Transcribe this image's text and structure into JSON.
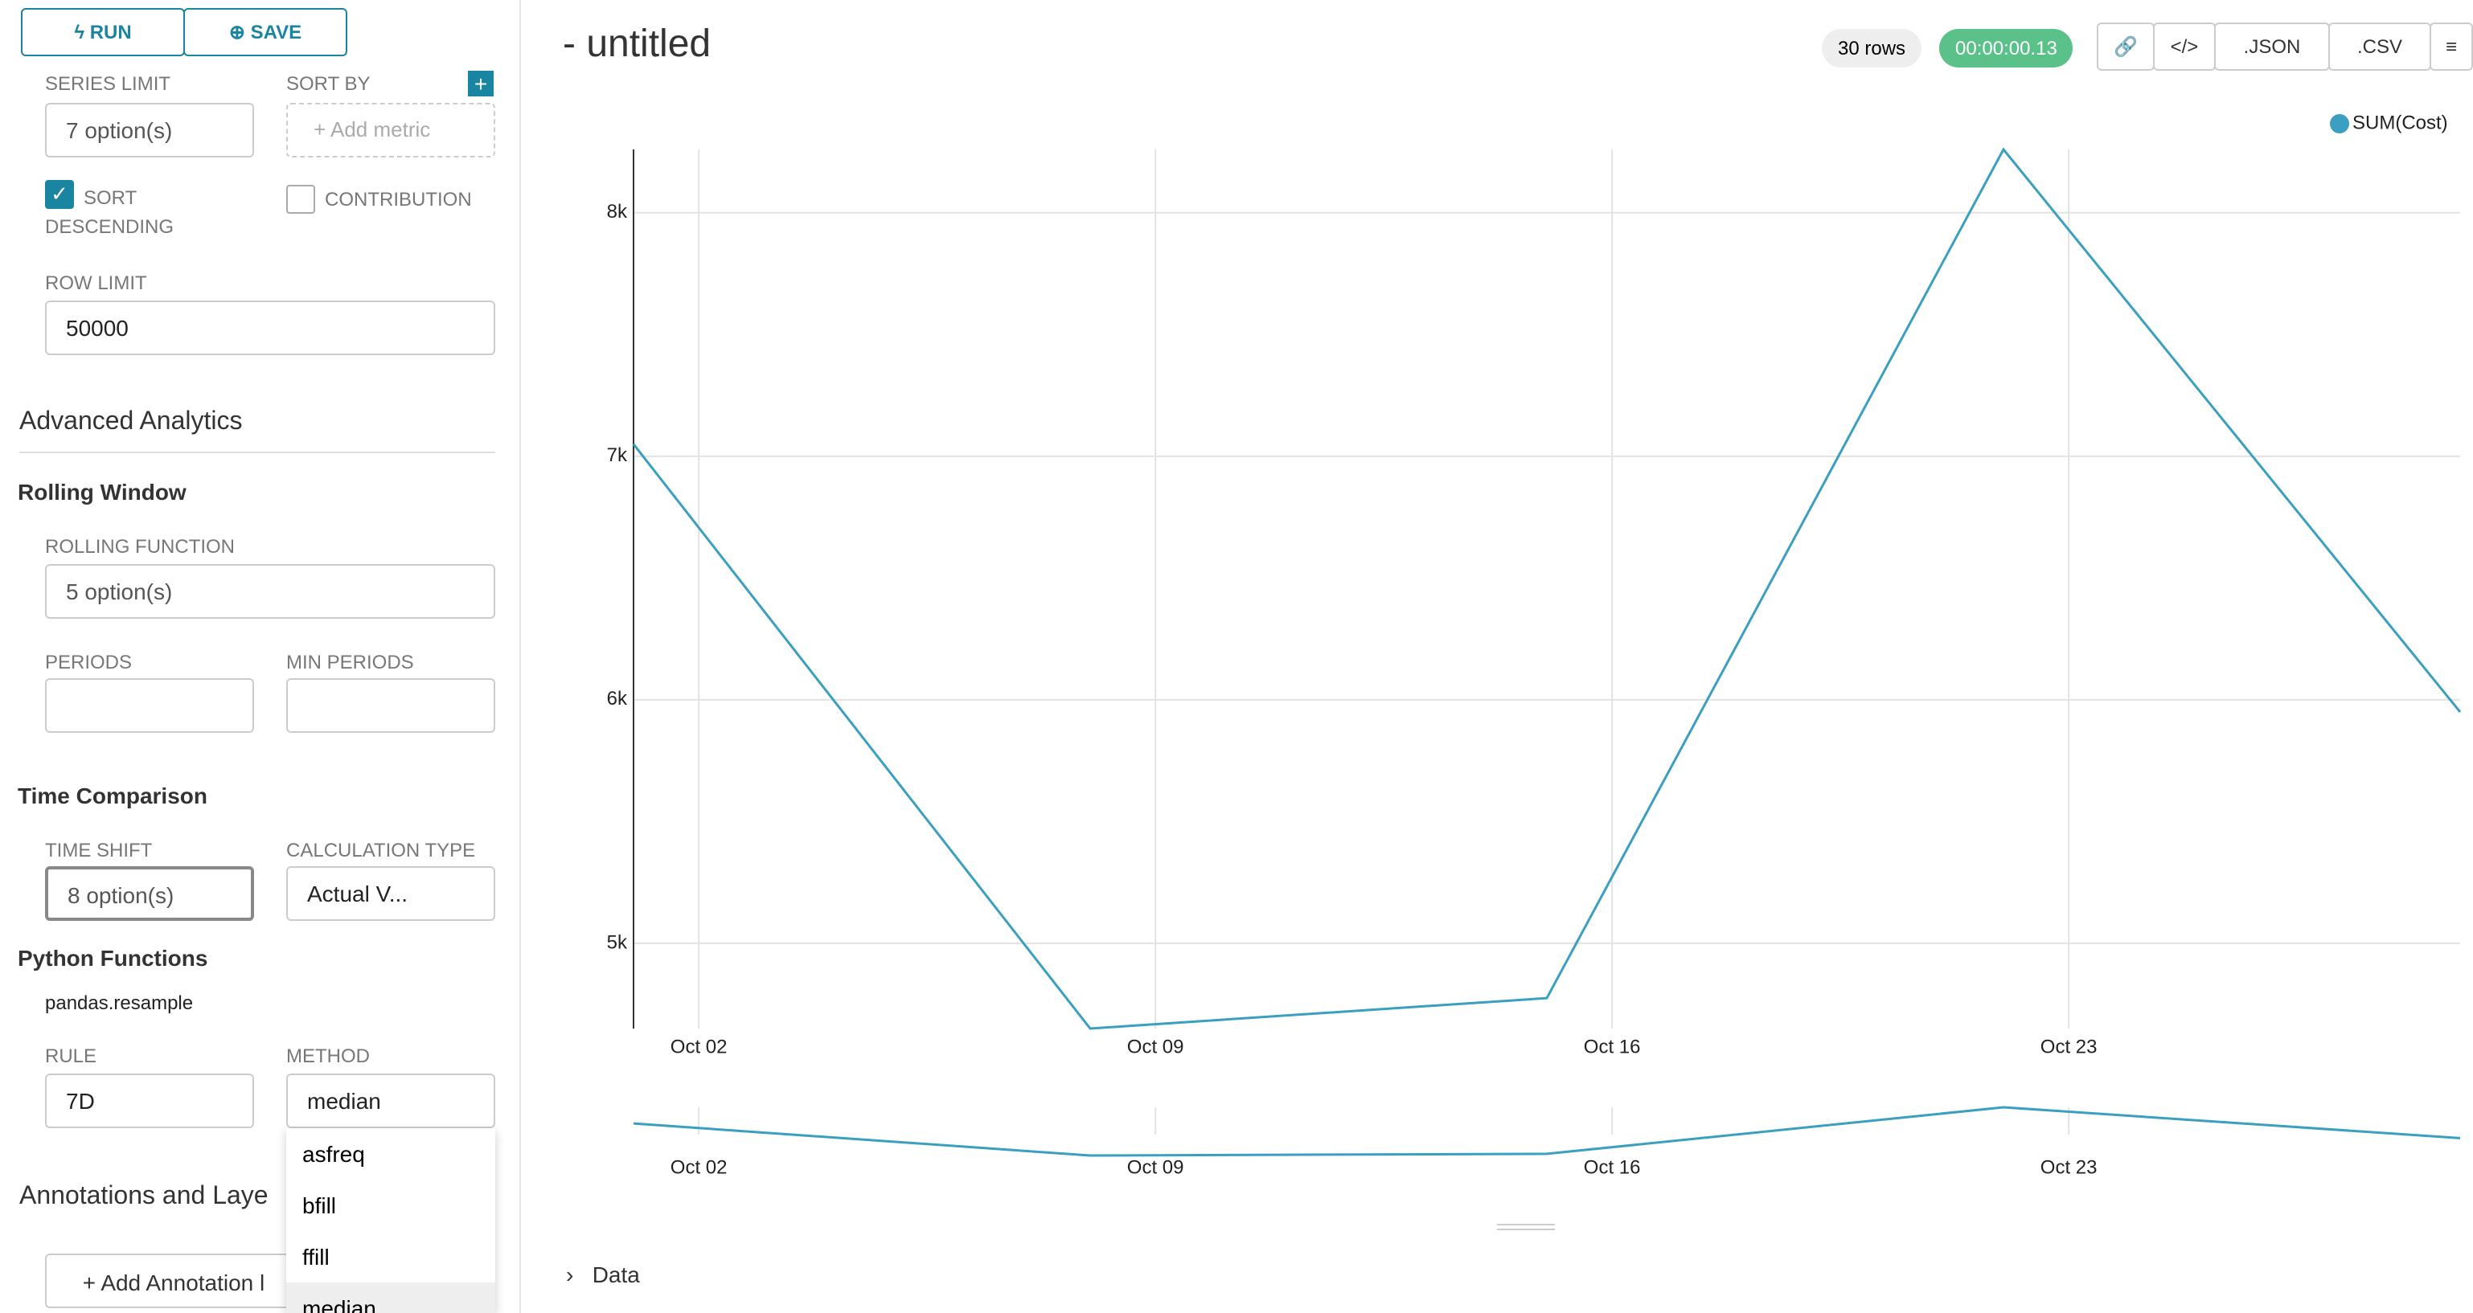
{
  "toolbar": {
    "run": "RUN",
    "save": "SAVE"
  },
  "sidebar": {
    "series_limit": {
      "label": "SERIES LIMIT",
      "value": "7 option(s)"
    },
    "sort_by": {
      "label": "SORT BY",
      "placeholder": "Add metric"
    },
    "sort_descending": "SORT DESCENDING",
    "contribution": "CONTRIBUTION",
    "row_limit": {
      "label": "ROW LIMIT",
      "value": "50000"
    },
    "advanced_analytics": "Advanced Analytics",
    "rolling_window": "Rolling Window",
    "rolling_function": {
      "label": "ROLLING FUNCTION",
      "value": "5 option(s)"
    },
    "periods": "PERIODS",
    "min_periods": "MIN PERIODS",
    "time_comparison": "Time Comparison",
    "time_shift": {
      "label": "TIME SHIFT",
      "value": "8 option(s)"
    },
    "calculation_type": {
      "label": "CALCULATION TYPE",
      "value": "Actual V..."
    },
    "python_functions": "Python Functions",
    "pandas_resample": "pandas.resample",
    "rule": {
      "label": "RULE",
      "value": "7D"
    },
    "method": {
      "label": "METHOD",
      "value": "median",
      "options": [
        "asfreq",
        "bfill",
        "ffill",
        "median"
      ]
    },
    "annotations": "Annotations and Laye",
    "add_annotation": "Add Annotation l"
  },
  "header": {
    "title": "- untitled",
    "rows": "30 rows",
    "timer": "00:00:00.13",
    "json": ".JSON",
    "csv": ".CSV"
  },
  "data_section": "Data",
  "chart_data": {
    "type": "line",
    "x": [
      1,
      8,
      15,
      22,
      29
    ],
    "series": [
      {
        "name": "SUM(Cost)",
        "color": "#3a9fc0",
        "values": [
          7050,
          4650,
          4775,
          8260,
          5950
        ]
      }
    ],
    "xlim": [
      1,
      29
    ],
    "xticks": [
      {
        "value": 2,
        "label": "Oct 02"
      },
      {
        "value": 9,
        "label": "Oct 09"
      },
      {
        "value": 16,
        "label": "Oct 16"
      },
      {
        "value": 23,
        "label": "Oct 23"
      }
    ],
    "ylim": [
      4650,
      8260
    ],
    "yticks": [
      {
        "value": 5000,
        "label": "5k"
      },
      {
        "value": 6000,
        "label": "6k"
      },
      {
        "value": 7000,
        "label": "7k"
      },
      {
        "value": 8000,
        "label": "8k"
      }
    ],
    "grid": true,
    "legend": "top-right"
  }
}
